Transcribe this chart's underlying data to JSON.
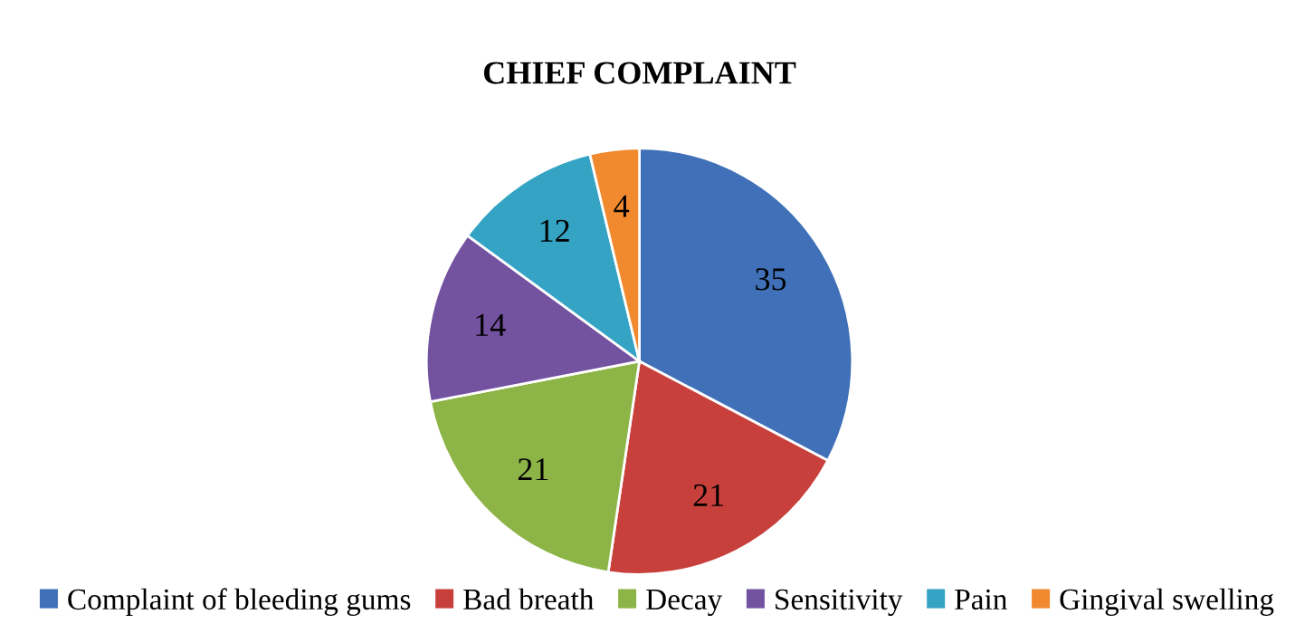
{
  "chart_data": {
    "type": "pie",
    "title": "CHIEF COMPLAINT",
    "categories": [
      "Complaint of bleeding gums",
      "Bad breath",
      "Decay",
      "Sensitivity",
      "Pain",
      "Gingival swelling"
    ],
    "values": [
      35,
      21,
      21,
      14,
      12,
      4
    ],
    "colors": [
      "#3f70b8",
      "#c8403c",
      "#8db446",
      "#7352a0",
      "#35a3c4",
      "#f18a2e"
    ],
    "data_labels": true,
    "legend": "bottom"
  }
}
